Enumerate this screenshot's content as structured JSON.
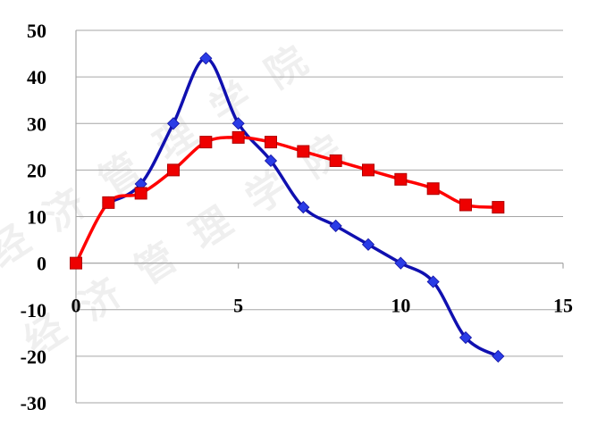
{
  "chart_data": {
    "type": "line",
    "title": "",
    "xlabel": "",
    "ylabel": "",
    "xlim": [
      0,
      15
    ],
    "ylim": [
      -30,
      50
    ],
    "xticks": [
      0,
      5,
      10,
      15
    ],
    "yticks": [
      50,
      40,
      30,
      20,
      10,
      0,
      -10,
      -20,
      -30
    ],
    "grid": {
      "horizontal": true,
      "vertical": false
    },
    "legend": "none",
    "smooth": true,
    "series": [
      {
        "color": "#1010b0",
        "marker": "diamond",
        "marker_color": "#2a3ce6",
        "x": [
          1,
          2,
          3,
          4,
          5,
          6,
          7,
          8,
          9,
          10,
          11,
          12,
          13
        ],
        "y": [
          13,
          17,
          30,
          44,
          30,
          22,
          12,
          8,
          4,
          0,
          -4,
          -16,
          -20
        ]
      },
      {
        "color": "#ff0000",
        "marker": "square",
        "marker_color": "#ee0000",
        "x": [
          0,
          1,
          2,
          3,
          4,
          5,
          6,
          7,
          8,
          9,
          10,
          11,
          12,
          13
        ],
        "y": [
          0,
          13,
          15,
          20,
          26,
          27,
          26,
          24,
          22,
          20,
          18,
          16,
          12.5,
          12
        ]
      }
    ],
    "watermark": "经济管理学院"
  }
}
